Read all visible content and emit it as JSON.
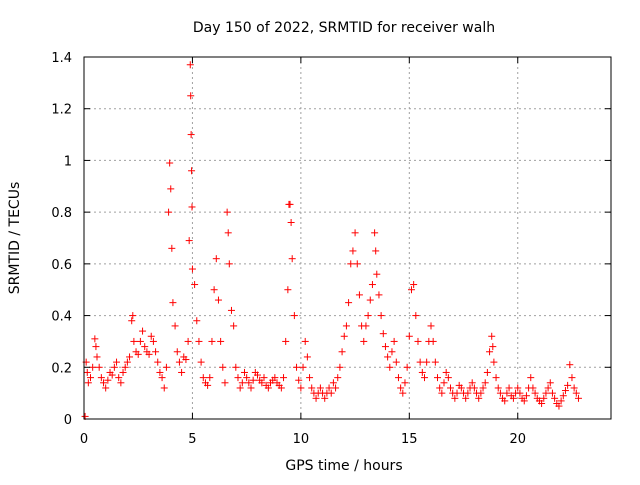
{
  "chart_data": {
    "type": "scatter",
    "title": "Day 150 of 2022, SRMTID for receiver walh",
    "xlabel": "GPS time / hours",
    "ylabel": "SRMTID / TECUs",
    "xlim": [
      0,
      24.3
    ],
    "ylim": [
      0,
      1.4
    ],
    "xticks": [
      0,
      5,
      10,
      15,
      20
    ],
    "xtick_labels": [
      "0",
      "5",
      "10",
      "15",
      "20"
    ],
    "yticks": [
      0,
      0.2,
      0.4,
      0.6,
      0.8,
      1.0,
      1.2,
      1.4
    ],
    "ytick_labels": [
      "0",
      "0.2",
      "0.4",
      "0.6",
      "0.8",
      "1",
      "1.2",
      "1.4"
    ],
    "grid": true,
    "marker": "plus",
    "color": "#ff0000",
    "series": [
      {
        "name": "SRMTID",
        "points": [
          [
            0.05,
            0.01
          ],
          [
            0.1,
            0.22
          ],
          [
            0.15,
            0.18
          ],
          [
            0.2,
            0.14
          ],
          [
            0.3,
            0.16
          ],
          [
            0.4,
            0.2
          ],
          [
            0.5,
            0.31
          ],
          [
            0.55,
            0.28
          ],
          [
            0.6,
            0.24
          ],
          [
            0.7,
            0.2
          ],
          [
            0.8,
            0.16
          ],
          [
            0.9,
            0.14
          ],
          [
            1.0,
            0.12
          ],
          [
            1.1,
            0.15
          ],
          [
            1.2,
            0.18
          ],
          [
            1.3,
            0.17
          ],
          [
            1.4,
            0.2
          ],
          [
            1.5,
            0.22
          ],
          [
            1.6,
            0.16
          ],
          [
            1.7,
            0.14
          ],
          [
            1.8,
            0.18
          ],
          [
            1.9,
            0.2
          ],
          [
            2.0,
            0.22
          ],
          [
            2.1,
            0.24
          ],
          [
            2.2,
            0.38
          ],
          [
            2.25,
            0.4
          ],
          [
            2.3,
            0.3
          ],
          [
            2.4,
            0.26
          ],
          [
            2.5,
            0.25
          ],
          [
            2.6,
            0.3
          ],
          [
            2.7,
            0.34
          ],
          [
            2.8,
            0.28
          ],
          [
            2.9,
            0.26
          ],
          [
            3.0,
            0.25
          ],
          [
            3.1,
            0.32
          ],
          [
            3.2,
            0.3
          ],
          [
            3.3,
            0.26
          ],
          [
            3.4,
            0.22
          ],
          [
            3.5,
            0.18
          ],
          [
            3.6,
            0.16
          ],
          [
            3.7,
            0.12
          ],
          [
            3.8,
            0.2
          ],
          [
            3.9,
            0.8
          ],
          [
            3.95,
            0.99
          ],
          [
            4.0,
            0.89
          ],
          [
            4.05,
            0.66
          ],
          [
            4.1,
            0.45
          ],
          [
            4.2,
            0.36
          ],
          [
            4.3,
            0.26
          ],
          [
            4.4,
            0.22
          ],
          [
            4.5,
            0.18
          ],
          [
            4.6,
            0.24
          ],
          [
            4.7,
            0.23
          ],
          [
            4.8,
            0.3
          ],
          [
            4.85,
            0.69
          ],
          [
            4.9,
            1.37
          ],
          [
            4.92,
            1.25
          ],
          [
            4.94,
            1.1
          ],
          [
            4.96,
            0.96
          ],
          [
            4.98,
            0.82
          ],
          [
            5.0,
            0.58
          ],
          [
            5.1,
            0.52
          ],
          [
            5.2,
            0.38
          ],
          [
            5.3,
            0.3
          ],
          [
            5.4,
            0.22
          ],
          [
            5.5,
            0.16
          ],
          [
            5.6,
            0.14
          ],
          [
            5.7,
            0.13
          ],
          [
            5.8,
            0.16
          ],
          [
            5.9,
            0.3
          ],
          [
            6.0,
            0.5
          ],
          [
            6.1,
            0.62
          ],
          [
            6.2,
            0.46
          ],
          [
            6.3,
            0.3
          ],
          [
            6.4,
            0.2
          ],
          [
            6.5,
            0.14
          ],
          [
            6.6,
            0.8
          ],
          [
            6.65,
            0.72
          ],
          [
            6.7,
            0.6
          ],
          [
            6.8,
            0.42
          ],
          [
            6.9,
            0.36
          ],
          [
            7.0,
            0.2
          ],
          [
            7.1,
            0.16
          ],
          [
            7.2,
            0.12
          ],
          [
            7.3,
            0.14
          ],
          [
            7.4,
            0.18
          ],
          [
            7.5,
            0.16
          ],
          [
            7.6,
            0.14
          ],
          [
            7.7,
            0.12
          ],
          [
            7.8,
            0.15
          ],
          [
            7.9,
            0.18
          ],
          [
            8.0,
            0.17
          ],
          [
            8.1,
            0.15
          ],
          [
            8.2,
            0.14
          ],
          [
            8.3,
            0.16
          ],
          [
            8.4,
            0.13
          ],
          [
            8.5,
            0.12
          ],
          [
            8.6,
            0.14
          ],
          [
            8.7,
            0.15
          ],
          [
            8.8,
            0.16
          ],
          [
            8.9,
            0.14
          ],
          [
            9.0,
            0.13
          ],
          [
            9.1,
            0.12
          ],
          [
            9.2,
            0.16
          ],
          [
            9.3,
            0.3
          ],
          [
            9.4,
            0.5
          ],
          [
            9.45,
            0.83
          ],
          [
            9.5,
            0.83
          ],
          [
            9.55,
            0.76
          ],
          [
            9.6,
            0.62
          ],
          [
            9.7,
            0.4
          ],
          [
            9.8,
            0.2
          ],
          [
            9.9,
            0.15
          ],
          [
            10.0,
            0.12
          ],
          [
            10.1,
            0.2
          ],
          [
            10.2,
            0.3
          ],
          [
            10.3,
            0.24
          ],
          [
            10.4,
            0.16
          ],
          [
            10.5,
            0.12
          ],
          [
            10.6,
            0.1
          ],
          [
            10.7,
            0.08
          ],
          [
            10.8,
            0.1
          ],
          [
            10.9,
            0.12
          ],
          [
            11.0,
            0.1
          ],
          [
            11.1,
            0.08
          ],
          [
            11.2,
            0.1
          ],
          [
            11.3,
            0.12
          ],
          [
            11.4,
            0.1
          ],
          [
            11.5,
            0.14
          ],
          [
            11.6,
            0.12
          ],
          [
            11.7,
            0.16
          ],
          [
            11.8,
            0.2
          ],
          [
            11.9,
            0.26
          ],
          [
            12.0,
            0.32
          ],
          [
            12.1,
            0.36
          ],
          [
            12.2,
            0.45
          ],
          [
            12.3,
            0.6
          ],
          [
            12.4,
            0.65
          ],
          [
            12.5,
            0.72
          ],
          [
            12.6,
            0.6
          ],
          [
            12.7,
            0.48
          ],
          [
            12.8,
            0.36
          ],
          [
            12.9,
            0.3
          ],
          [
            13.0,
            0.36
          ],
          [
            13.1,
            0.4
          ],
          [
            13.2,
            0.46
          ],
          [
            13.3,
            0.52
          ],
          [
            13.4,
            0.72
          ],
          [
            13.45,
            0.65
          ],
          [
            13.5,
            0.56
          ],
          [
            13.6,
            0.48
          ],
          [
            13.7,
            0.4
          ],
          [
            13.8,
            0.33
          ],
          [
            13.9,
            0.28
          ],
          [
            14.0,
            0.24
          ],
          [
            14.1,
            0.2
          ],
          [
            14.2,
            0.26
          ],
          [
            14.3,
            0.3
          ],
          [
            14.4,
            0.22
          ],
          [
            14.5,
            0.16
          ],
          [
            14.6,
            0.12
          ],
          [
            14.7,
            0.1
          ],
          [
            14.8,
            0.14
          ],
          [
            14.9,
            0.2
          ],
          [
            15.0,
            0.32
          ],
          [
            15.1,
            0.5
          ],
          [
            15.2,
            0.52
          ],
          [
            15.3,
            0.4
          ],
          [
            15.4,
            0.3
          ],
          [
            15.5,
            0.22
          ],
          [
            15.6,
            0.18
          ],
          [
            15.7,
            0.16
          ],
          [
            15.8,
            0.22
          ],
          [
            15.9,
            0.3
          ],
          [
            16.0,
            0.36
          ],
          [
            16.1,
            0.3
          ],
          [
            16.2,
            0.22
          ],
          [
            16.3,
            0.16
          ],
          [
            16.4,
            0.12
          ],
          [
            16.5,
            0.1
          ],
          [
            16.6,
            0.14
          ],
          [
            16.7,
            0.18
          ],
          [
            16.8,
            0.16
          ],
          [
            16.9,
            0.12
          ],
          [
            17.0,
            0.1
          ],
          [
            17.1,
            0.08
          ],
          [
            17.2,
            0.1
          ],
          [
            17.3,
            0.13
          ],
          [
            17.4,
            0.12
          ],
          [
            17.5,
            0.1
          ],
          [
            17.6,
            0.08
          ],
          [
            17.7,
            0.1
          ],
          [
            17.8,
            0.12
          ],
          [
            17.9,
            0.14
          ],
          [
            18.0,
            0.12
          ],
          [
            18.1,
            0.1
          ],
          [
            18.2,
            0.08
          ],
          [
            18.3,
            0.1
          ],
          [
            18.4,
            0.12
          ],
          [
            18.5,
            0.14
          ],
          [
            18.6,
            0.18
          ],
          [
            18.7,
            0.26
          ],
          [
            18.8,
            0.32
          ],
          [
            18.85,
            0.28
          ],
          [
            18.9,
            0.22
          ],
          [
            19.0,
            0.16
          ],
          [
            19.1,
            0.12
          ],
          [
            19.2,
            0.1
          ],
          [
            19.3,
            0.08
          ],
          [
            19.4,
            0.07
          ],
          [
            19.5,
            0.1
          ],
          [
            19.6,
            0.12
          ],
          [
            19.7,
            0.09
          ],
          [
            19.8,
            0.08
          ],
          [
            19.9,
            0.1
          ],
          [
            20.0,
            0.12
          ],
          [
            20.1,
            0.1
          ],
          [
            20.2,
            0.08
          ],
          [
            20.3,
            0.07
          ],
          [
            20.4,
            0.09
          ],
          [
            20.5,
            0.12
          ],
          [
            20.6,
            0.16
          ],
          [
            20.7,
            0.12
          ],
          [
            20.8,
            0.1
          ],
          [
            20.9,
            0.08
          ],
          [
            21.0,
            0.07
          ],
          [
            21.1,
            0.06
          ],
          [
            21.2,
            0.08
          ],
          [
            21.3,
            0.1
          ],
          [
            21.4,
            0.12
          ],
          [
            21.5,
            0.14
          ],
          [
            21.6,
            0.1
          ],
          [
            21.7,
            0.08
          ],
          [
            21.8,
            0.06
          ],
          [
            21.9,
            0.05
          ],
          [
            22.0,
            0.07
          ],
          [
            22.1,
            0.09
          ],
          [
            22.2,
            0.11
          ],
          [
            22.3,
            0.13
          ],
          [
            22.4,
            0.21
          ],
          [
            22.5,
            0.16
          ],
          [
            22.6,
            0.12
          ],
          [
            22.7,
            0.1
          ],
          [
            22.8,
            0.08
          ]
        ]
      }
    ]
  }
}
